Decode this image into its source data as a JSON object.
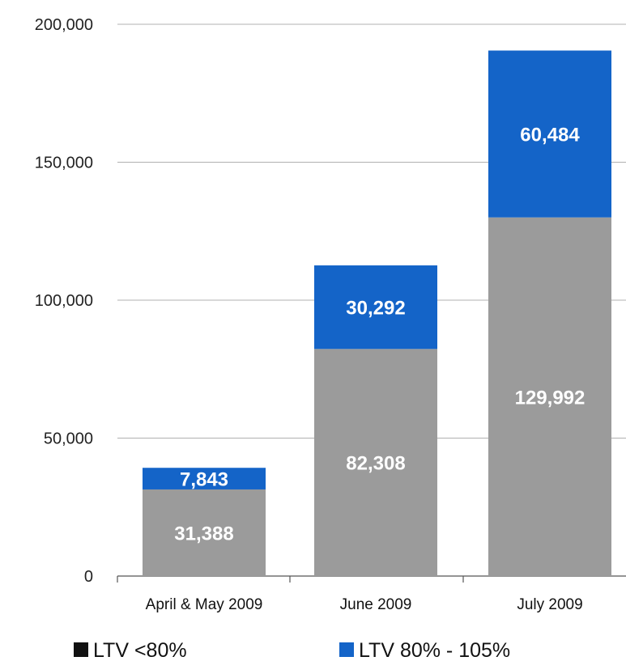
{
  "chart_data": {
    "type": "bar",
    "stacked": true,
    "title": "",
    "xlabel": "",
    "ylabel": "",
    "categories": [
      "April & May 2009",
      "June 2009",
      "July 2009"
    ],
    "series": [
      {
        "name": "LTV <80%",
        "values": [
          31388,
          82308,
          129992
        ],
        "labels": [
          "31,388",
          "82,308",
          "129,992"
        ],
        "color": "#9b9b9b"
      },
      {
        "name": "LTV 80% - 105%",
        "values": [
          7843,
          30292,
          60484
        ],
        "labels": [
          "7,843",
          "30,292",
          "60,484"
        ],
        "color": "#1464c8"
      }
    ],
    "ylim": [
      0,
      200000
    ],
    "yticks": [
      0,
      50000,
      100000,
      150000,
      200000
    ],
    "ytick_labels": [
      "0",
      "50,000",
      "100,000",
      "150,000",
      "200,000"
    ],
    "grid": true,
    "grid_color": "#b0b0b0",
    "axis_color": "#555555",
    "legend_position": "bottom",
    "legend": [
      {
        "label": "LTV <80%",
        "color": "#111111"
      },
      {
        "label": "LTV 80% - 105%",
        "color": "#1464c8"
      }
    ]
  }
}
